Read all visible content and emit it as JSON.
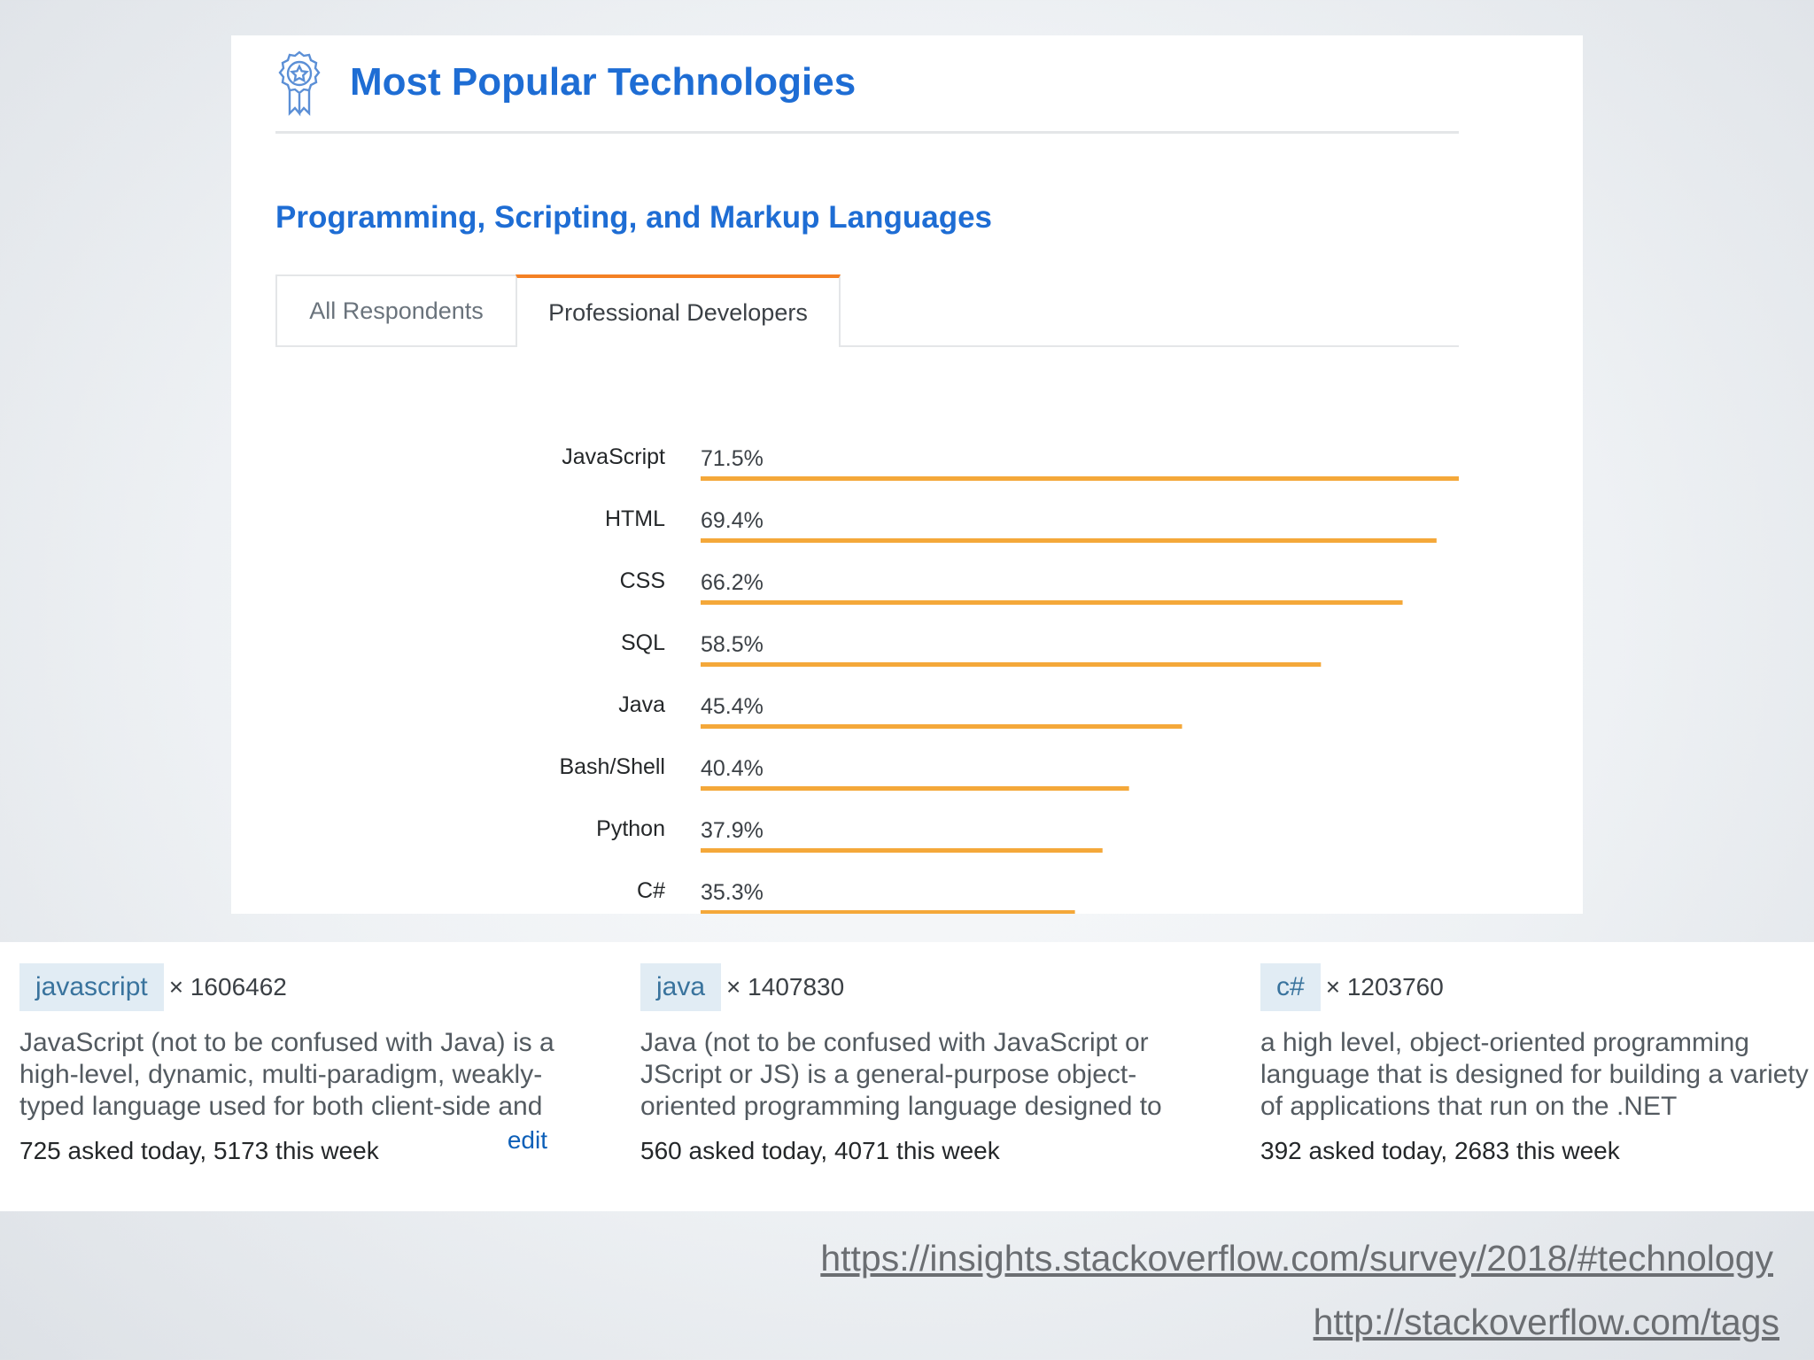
{
  "card": {
    "title": "Most Popular Technologies",
    "section_title": "Programming, Scripting, and Markup Languages",
    "tabs": [
      {
        "label": "All Respondents",
        "active": false
      },
      {
        "label": "Professional Developers",
        "active": true
      }
    ]
  },
  "colors": {
    "title_blue": "#1e6dd4",
    "bar_orange": "#f4a83a",
    "active_tab_orange": "#f48024",
    "tag_chip_bg": "#e1ecf4",
    "tag_chip_text": "#39739d"
  },
  "icons": {
    "badge": "award-ribbon-icon"
  },
  "chart_data": {
    "type": "bar",
    "orientation": "horizontal",
    "categories": [
      "JavaScript",
      "HTML",
      "CSS",
      "SQL",
      "Java",
      "Bash/Shell",
      "Python",
      "C#"
    ],
    "values": [
      71.5,
      69.4,
      66.2,
      58.5,
      45.4,
      40.4,
      37.9,
      35.3
    ],
    "value_labels": [
      "71.5%",
      "69.4%",
      "66.2%",
      "58.5%",
      "45.4%",
      "40.4%",
      "37.9%",
      "35.3%"
    ],
    "unit": "%",
    "xlim": [
      0,
      71.5
    ],
    "grid": false
  },
  "tags": [
    {
      "name": "javascript",
      "multiplier": "× 1606462",
      "description": "JavaScript (not to be confused with Java) is a high-level, dynamic, multi-paradigm, weakly-typed language used for both client-side and",
      "stats": "725 asked today, 5173 this week",
      "edit": "edit"
    },
    {
      "name": "java",
      "multiplier": "× 1407830",
      "description": "Java (not to be confused with JavaScript or JScript or JS) is a general-purpose object-oriented programming language designed to",
      "stats": "560 asked today, 4071 this week"
    },
    {
      "name": "c#",
      "multiplier": "× 1203760",
      "description": "a high level, object-oriented programming language that is designed for building a variety of applications that run on the .NET",
      "stats": "392 asked today, 2683 this week"
    }
  ],
  "links": [
    "https://insights.stackoverflow.com/survey/2018/#technology",
    "http://stackoverflow.com/tags"
  ]
}
